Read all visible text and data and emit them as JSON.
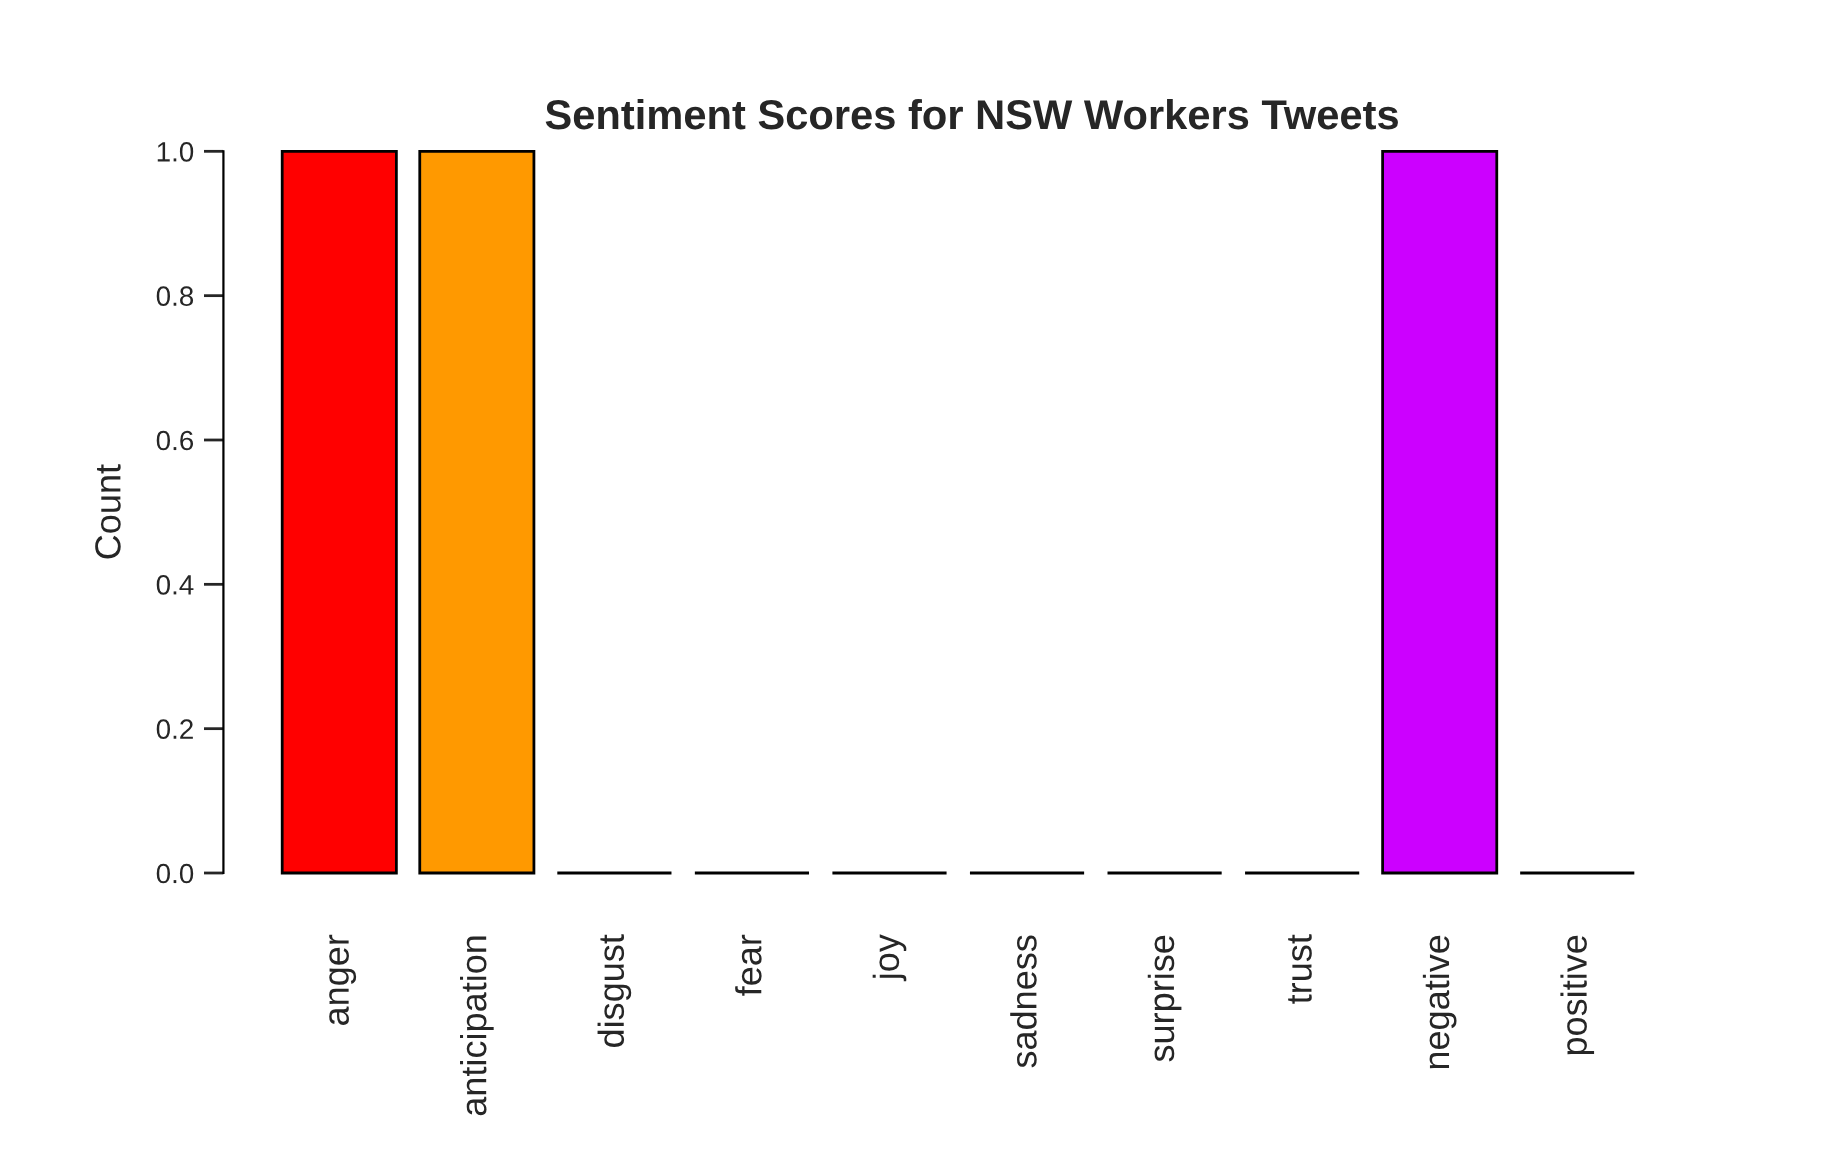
{
  "chart_data": {
    "type": "bar",
    "title": "Sentiment Scores for NSW Workers Tweets",
    "ylabel": "Count",
    "categories": [
      "anger",
      "anticipation",
      "disgust",
      "fear",
      "joy",
      "sadness",
      "surprise",
      "trust",
      "negative",
      "positive"
    ],
    "values": [
      1,
      1,
      0,
      0,
      0,
      0,
      0,
      0,
      1,
      0
    ],
    "colors": [
      "#ff0000",
      "#ff9900",
      null,
      null,
      null,
      null,
      null,
      null,
      "#cc00ff",
      null
    ],
    "ylim": [
      0,
      1
    ],
    "yticks": [
      {
        "value": 0,
        "label": "0.0"
      },
      0.2,
      0.4,
      0.6,
      0.8,
      {
        "value": 1,
        "label": "1.0"
      }
    ],
    "grid": false,
    "legend": false
  }
}
